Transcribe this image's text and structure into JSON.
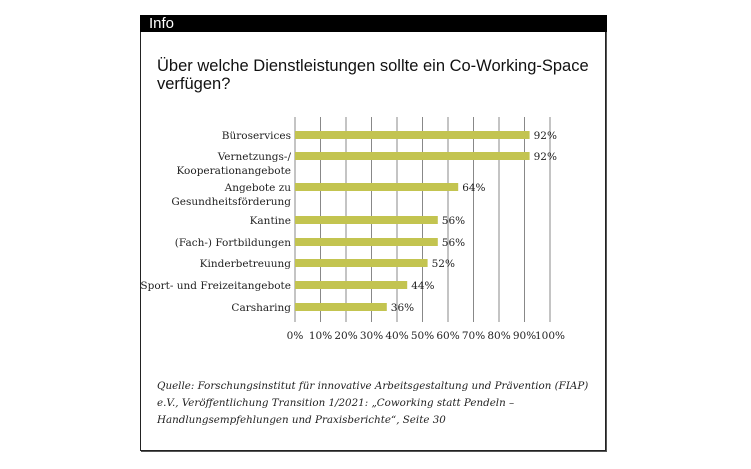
{
  "header": {
    "label": "Info"
  },
  "title": "Über welche Dienstleistungen sollte ein Co-Working-Space verfügen?",
  "source": "Quelle: Forschungsinstitut für innovative Arbeitsgestaltung und Prävention (FIAP) e.V., Veröffentlichung Transition 1/2021: „Coworking statt Pendeln – Handlungsempfehlungen und Praxisberichte“, Seite 30",
  "chart_data": {
    "type": "bar",
    "orientation": "horizontal",
    "title": "Über welche Dienstleistungen sollte ein Co-Working-Space verfügen?",
    "categories": [
      [
        "Büroservices"
      ],
      [
        "Vernetzungs-/",
        "Kooperationangebote"
      ],
      [
        "Angebote zu",
        "Gesundheitsförderung"
      ],
      [
        "Kantine"
      ],
      [
        "(Fach-) Fortbildungen"
      ],
      [
        "Kinderbetreuung"
      ],
      [
        "Sport- und Freizeitangebote"
      ],
      [
        "Carsharing"
      ]
    ],
    "values": [
      92,
      92,
      64,
      56,
      56,
      52,
      44,
      36
    ],
    "value_labels": [
      "92%",
      "92%",
      "64%",
      "56%",
      "56%",
      "52%",
      "44%",
      "36%"
    ],
    "xticks": [
      "0%",
      "10%",
      "20%",
      "30%",
      "40%",
      "50%",
      "60%",
      "70%",
      "80%",
      "90%",
      "100%"
    ],
    "xlim": [
      0,
      100
    ],
    "grid": true,
    "bar_color": "#c3c450"
  }
}
